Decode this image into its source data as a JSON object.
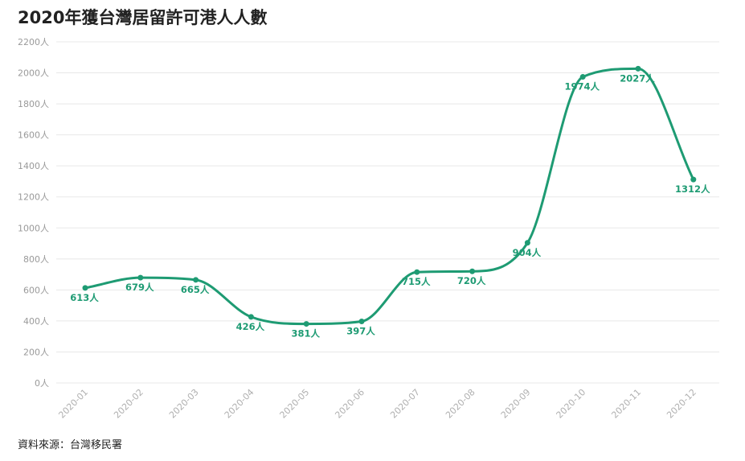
{
  "title": "2020年獲台灣居留許可港人人數",
  "source": "資料來源：台灣移民署",
  "colors": {
    "line": "#1e9b73",
    "grid": "#e8e8e8",
    "axis_text": "#9a9a9a"
  },
  "chart_data": {
    "type": "line",
    "title": "2020年獲台灣居留許可港人人數",
    "categories": [
      "2020-01",
      "2020-02",
      "2020-03",
      "2020-04",
      "2020-05",
      "2020-06",
      "2020-07",
      "2020-08",
      "2020-09",
      "2020-10",
      "2020-11",
      "2020-12"
    ],
    "series": [
      {
        "values": [
          613,
          679,
          665,
          426,
          381,
          397,
          715,
          720,
          904,
          1974,
          2027,
          1312
        ]
      }
    ],
    "data_labels": [
      "613人",
      "679人",
      "665人",
      "426人",
      "381人",
      "397人",
      "715人",
      "720人",
      "904人",
      "1974人",
      "2027人",
      "1312人"
    ],
    "y_ticks": [
      "0人",
      "200人",
      "400人",
      "600人",
      "800人",
      "1000人",
      "1200人",
      "1400人",
      "1600人",
      "1800人",
      "2000人",
      "2200人"
    ],
    "ylim": [
      0,
      2200
    ],
    "grid": true,
    "legend": "none"
  }
}
